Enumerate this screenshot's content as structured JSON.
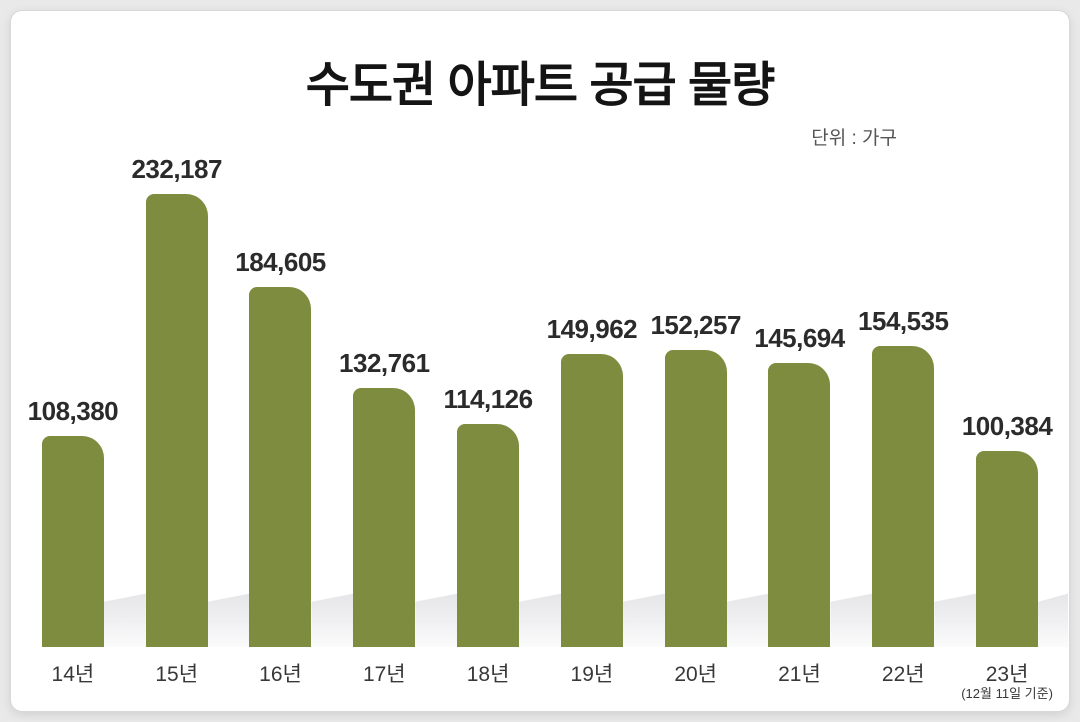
{
  "page": {
    "background_color": "#e9e9e9",
    "card_background_color": "#ffffff"
  },
  "header": {
    "title": "수도권 아파트 공급 물량",
    "unit_label": "단위 : 가구"
  },
  "chart_data": {
    "type": "bar",
    "title": "수도권 아파트 공급 물량",
    "unit": "가구",
    "categories": [
      "14년",
      "15년",
      "16년",
      "17년",
      "18년",
      "19년",
      "20년",
      "21년",
      "22년",
      "23년"
    ],
    "category_notes": [
      "",
      "",
      "",
      "",
      "",
      "",
      "",
      "",
      "",
      "(12월 11일 기준)"
    ],
    "values": [
      108380,
      232187,
      184605,
      132761,
      114126,
      149962,
      152257,
      145694,
      154535,
      100384
    ],
    "value_labels": [
      "108,380",
      "232,187",
      "184,605",
      "132,761",
      "114,126",
      "149,962",
      "152,257",
      "145,694",
      "154,535",
      "100,384"
    ],
    "bar_color": "#7e8c40",
    "ylim": [
      0,
      240000
    ],
    "grid": false,
    "legend": false,
    "data_labels": true,
    "xlabel": "",
    "ylabel": ""
  }
}
